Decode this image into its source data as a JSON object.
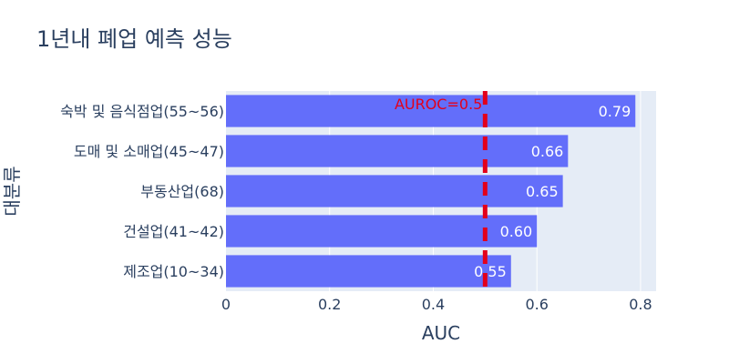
{
  "chart_data": {
    "type": "bar",
    "orientation": "horizontal",
    "title": "1년내 폐업 예측 성능",
    "xlabel": "AUC",
    "ylabel": "대분류",
    "categories": [
      "숙박 및 음식점업(55~56)",
      "도매 및 소매업(45~47)",
      "부동산업(68)",
      "건설업(41~42)",
      "제조업(10~34)"
    ],
    "values": [
      0.79,
      0.66,
      0.65,
      0.6,
      0.55
    ],
    "value_labels": [
      "0.79",
      "0.66",
      "0.65",
      "0.60",
      "0.55"
    ],
    "xlim": [
      0,
      0.83
    ],
    "x_ticks": [
      "0",
      "0.2",
      "0.4",
      "0.6",
      "0.8"
    ],
    "x_tick_values": [
      0,
      0.2,
      0.4,
      0.6,
      0.8
    ],
    "grid": true,
    "reference_line": {
      "x": 0.5,
      "label": "AUROC=0.5",
      "style": "dashed",
      "color": "#e3001b"
    },
    "colors": {
      "bar": "#636efa",
      "plot_bg": "#e5ecf6",
      "text": "#2a3f5f"
    }
  }
}
